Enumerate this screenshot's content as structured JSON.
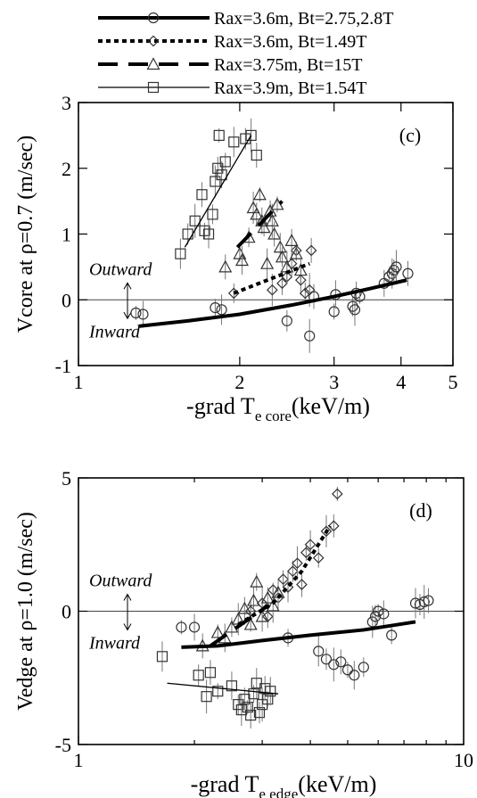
{
  "legend": [
    {
      "name": "Rax=3.6m, Bt=2.75,2.8T",
      "style": "solid-thick",
      "marker": "circle"
    },
    {
      "name": "Rax=3.6m, Bt=1.49T",
      "style": "dotted-thick",
      "marker": "diamond"
    },
    {
      "name": "Rax=3.75m, Bt=15T",
      "style": "long-dash",
      "marker": "triangle"
    },
    {
      "name": "Rax=3.9m, Bt=1.54T",
      "style": "thin-solid",
      "marker": "square"
    }
  ],
  "chart_data": [
    {
      "type": "scatter",
      "panel_label": "(c)",
      "xlabel_main": "-grad T",
      "xlabel_sub": "e core",
      "xlabel_unit": "(keV/m)",
      "ylabel": "Vcore at ρ=0.7 (m/sec)",
      "xscale": "log",
      "xlim": [
        1,
        5
      ],
      "ylim": [
        -1,
        3
      ],
      "xticks": [
        1,
        2,
        3,
        4,
        5
      ],
      "xtick_labels": [
        "1",
        "2",
        "3",
        "4",
        "5"
      ],
      "yticks": [
        -1,
        0,
        1,
        2,
        3
      ],
      "ytick_labels": [
        "-1",
        "0",
        "1",
        "2",
        "3"
      ],
      "zero_line": true,
      "annotations": {
        "outward": "Outward",
        "inward": "Inward"
      },
      "fit_lines": [
        {
          "series": 0,
          "points": [
            [
              1.3,
              -0.4
            ],
            [
              1.6,
              -0.32
            ],
            [
              2.0,
              -0.22
            ],
            [
              2.5,
              -0.08
            ],
            [
              3.0,
              0.05
            ],
            [
              3.5,
              0.17
            ],
            [
              4.1,
              0.3
            ]
          ]
        },
        {
          "series": 1,
          "points": [
            [
              1.95,
              0.1
            ],
            [
              2.7,
              0.55
            ]
          ]
        },
        {
          "series": 2,
          "points": [
            [
              1.98,
              0.8
            ],
            [
              2.4,
              1.5
            ]
          ]
        },
        {
          "series": 3,
          "points": [
            [
              1.58,
              0.8
            ],
            [
              2.1,
              2.5
            ]
          ]
        }
      ],
      "series": [
        {
          "name": "Rax=3.6m, Bt=2.75,2.8T",
          "marker": "circle",
          "x": [
            1.28,
            1.32,
            1.8,
            1.85,
            2.45,
            2.7,
            2.75,
            3.0,
            3.02,
            3.25,
            3.28,
            3.3,
            3.35,
            3.72,
            3.8,
            3.85,
            3.88,
            3.92,
            4.12
          ],
          "y": [
            -0.2,
            -0.22,
            -0.12,
            -0.15,
            -0.32,
            -0.55,
            0.05,
            -0.18,
            0.08,
            -0.1,
            -0.15,
            0.1,
            0.05,
            0.25,
            0.35,
            0.4,
            0.45,
            0.5,
            0.4
          ]
        },
        {
          "name": "Rax=3.6m, Bt=1.49T",
          "marker": "diamond",
          "x": [
            1.95,
            2.3,
            2.4,
            2.45,
            2.5,
            2.55,
            2.6,
            2.65,
            2.7,
            2.72
          ],
          "y": [
            0.1,
            0.15,
            0.25,
            0.35,
            0.55,
            0.75,
            0.3,
            0.1,
            0.15,
            0.75
          ]
        },
        {
          "name": "Rax=3.75m, Bt=15T",
          "marker": "triangle",
          "x": [
            1.88,
            2.0,
            2.02,
            2.08,
            2.12,
            2.15,
            2.18,
            2.2,
            2.22,
            2.25,
            2.28,
            2.3,
            2.32,
            2.35,
            2.38,
            2.4,
            2.45,
            2.5,
            2.55,
            2.6
          ],
          "y": [
            0.5,
            0.7,
            0.6,
            0.95,
            1.4,
            1.3,
            1.6,
            1.2,
            1.1,
            0.55,
            1.35,
            1.2,
            1.0,
            1.45,
            0.8,
            0.65,
            0.5,
            0.9,
            0.7,
            0.45
          ]
        },
        {
          "name": "Rax=3.9m, Bt=1.54T",
          "marker": "square",
          "x": [
            1.55,
            1.6,
            1.65,
            1.7,
            1.72,
            1.75,
            1.78,
            1.8,
            1.82,
            1.83,
            1.85,
            1.88,
            1.95,
            2.05,
            2.1,
            2.15
          ],
          "y": [
            0.7,
            1.0,
            1.2,
            1.6,
            1.05,
            1.0,
            1.3,
            1.8,
            2.0,
            2.5,
            1.9,
            2.1,
            2.4,
            2.45,
            2.5,
            2.2
          ]
        }
      ]
    },
    {
      "type": "scatter",
      "panel_label": "(d)",
      "xlabel_main": "-grad T",
      "xlabel_sub": "e edge",
      "xlabel_unit": "(keV/m)",
      "ylabel": "Vedge at ρ=1.0 (m/sec)",
      "xscale": "log",
      "xlim": [
        1,
        10
      ],
      "ylim": [
        -5,
        5
      ],
      "xticks": [
        1,
        10
      ],
      "xtick_labels": [
        "1",
        "10"
      ],
      "yticks": [
        -5,
        0,
        5
      ],
      "ytick_labels": [
        "-5",
        "0",
        "5"
      ],
      "zero_line": true,
      "annotations": {
        "outward": "Outward",
        "inward": "Inward"
      },
      "fit_lines": [
        {
          "series": 0,
          "points": [
            [
              1.85,
              -1.35
            ],
            [
              2.3,
              -1.3
            ],
            [
              3.0,
              -1.1
            ],
            [
              4.0,
              -0.9
            ],
            [
              5.5,
              -0.7
            ],
            [
              7.5,
              -0.4
            ]
          ]
        },
        {
          "series": 1,
          "points": [
            [
              2.6,
              -0.5
            ],
            [
              3.2,
              0.3
            ],
            [
              3.8,
              1.5
            ],
            [
              4.5,
              3.2
            ]
          ]
        },
        {
          "series": 2,
          "points": [
            [
              2.2,
              -1.3
            ],
            [
              3.1,
              0.2
            ]
          ]
        },
        {
          "series": 3,
          "points": [
            [
              1.7,
              -2.7
            ],
            [
              3.3,
              -3.1
            ]
          ]
        }
      ],
      "series": [
        {
          "name": "Rax=3.6m, Bt=2.75,2.8T",
          "marker": "circle",
          "x": [
            1.85,
            2.0,
            3.5,
            4.2,
            4.4,
            4.6,
            4.8,
            5.0,
            5.2,
            5.5,
            5.8,
            5.9,
            6.0,
            6.2,
            6.5,
            7.5,
            7.7,
            7.9,
            8.1
          ],
          "y": [
            -0.6,
            -0.6,
            -1.0,
            -1.5,
            -1.8,
            -2.0,
            -1.9,
            -2.2,
            -2.4,
            -2.1,
            -0.4,
            -0.2,
            0.0,
            -0.1,
            -0.9,
            0.3,
            0.25,
            0.35,
            0.4
          ]
        },
        {
          "name": "Rax=3.6m, Bt=1.49T",
          "marker": "diamond",
          "x": [
            2.8,
            3.0,
            3.1,
            3.2,
            3.3,
            3.4,
            3.5,
            3.6,
            3.7,
            3.8,
            3.9,
            4.0,
            4.2,
            4.4,
            4.6,
            4.7
          ],
          "y": [
            0.0,
            0.3,
            -0.2,
            0.8,
            0.5,
            1.2,
            0.9,
            1.5,
            1.8,
            1.0,
            2.2,
            2.5,
            2.0,
            3.0,
            3.2,
            4.4
          ]
        },
        {
          "name": "Rax=3.75m, Bt=15T",
          "marker": "triangle",
          "x": [
            2.1,
            2.3,
            2.4,
            2.5,
            2.6,
            2.7,
            2.8,
            2.85,
            2.9,
            3.0,
            3.1,
            3.2,
            3.3
          ],
          "y": [
            -1.3,
            -0.8,
            -1.0,
            -0.6,
            -0.3,
            0.1,
            -0.5,
            0.4,
            1.1,
            -0.2,
            0.5,
            0.2,
            0.7
          ]
        },
        {
          "name": "Rax=3.9m, Bt=1.54T",
          "marker": "square",
          "x": [
            1.65,
            2.05,
            2.15,
            2.2,
            2.3,
            2.5,
            2.6,
            2.65,
            2.7,
            2.75,
            2.8,
            2.85,
            2.9,
            2.95,
            3.0,
            3.05,
            3.1,
            3.15
          ],
          "y": [
            -1.7,
            -2.4,
            -3.2,
            -2.3,
            -3.0,
            -2.8,
            -3.5,
            -3.7,
            -3.3,
            -3.6,
            -3.9,
            -3.1,
            -2.7,
            -3.8,
            -3.5,
            -2.9,
            -3.3,
            -3.0
          ]
        }
      ]
    }
  ]
}
